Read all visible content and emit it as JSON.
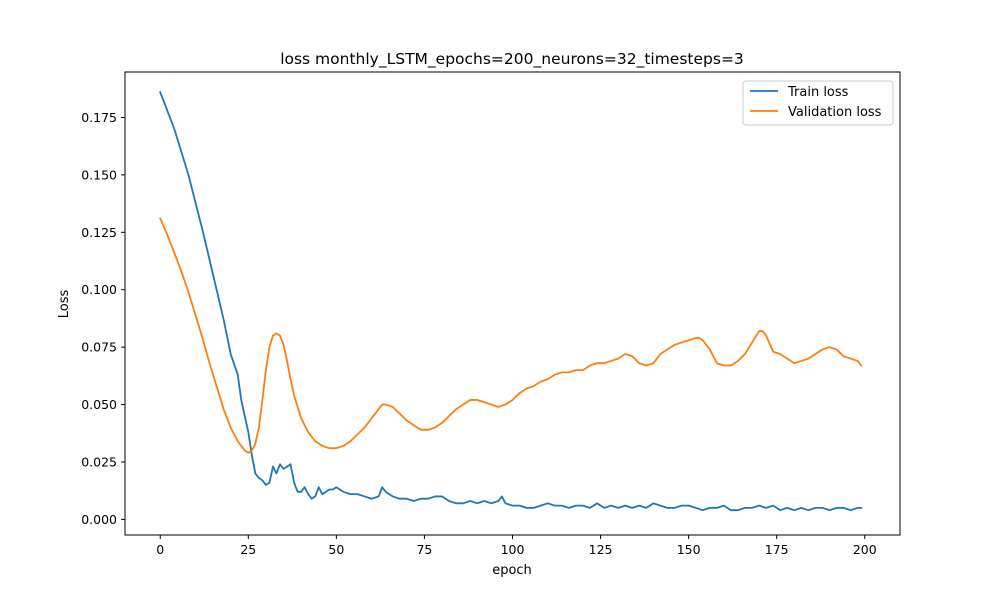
{
  "chart_data": {
    "type": "line",
    "title": "loss monthly_LSTM_epochs=200_neurons=32_timesteps=3",
    "xlabel": "epoch",
    "ylabel": "Loss",
    "xlim": [
      -10,
      210
    ],
    "ylim": [
      -0.0068,
      0.1948
    ],
    "xticks": [
      0,
      25,
      50,
      75,
      100,
      125,
      150,
      175,
      200
    ],
    "yticks": [
      0.0,
      0.025,
      0.05,
      0.075,
      0.1,
      0.125,
      0.15,
      0.175
    ],
    "ytick_labels": [
      "0.000",
      "0.025",
      "0.050",
      "0.075",
      "0.100",
      "0.125",
      "0.150",
      "0.175"
    ],
    "grid": false,
    "legend_position": "upper right",
    "series": [
      {
        "name": "Train loss",
        "color": "#1f77b4",
        "x": [
          0,
          2,
          4,
          6,
          8,
          10,
          12,
          14,
          16,
          18,
          20,
          22,
          23,
          24,
          25,
          26,
          27,
          28,
          29,
          30,
          31,
          32,
          33,
          34,
          35,
          36,
          37,
          38,
          39,
          40,
          41,
          42,
          43,
          44,
          45,
          46,
          47,
          48,
          49,
          50,
          52,
          54,
          56,
          58,
          60,
          62,
          63,
          64,
          66,
          68,
          70,
          72,
          74,
          76,
          78,
          80,
          82,
          84,
          86,
          88,
          90,
          92,
          94,
          96,
          97,
          98,
          100,
          102,
          104,
          106,
          108,
          110,
          112,
          114,
          116,
          118,
          120,
          122,
          124,
          126,
          128,
          130,
          132,
          134,
          136,
          138,
          140,
          142,
          144,
          146,
          148,
          150,
          152,
          154,
          156,
          158,
          160,
          162,
          164,
          166,
          168,
          170,
          172,
          174,
          176,
          178,
          180,
          182,
          184,
          186,
          188,
          190,
          192,
          194,
          196,
          198,
          199
        ],
        "values": [
          0.186,
          0.178,
          0.17,
          0.16,
          0.15,
          0.138,
          0.126,
          0.113,
          0.1,
          0.087,
          0.072,
          0.063,
          0.052,
          0.045,
          0.038,
          0.028,
          0.02,
          0.018,
          0.017,
          0.015,
          0.016,
          0.023,
          0.02,
          0.024,
          0.022,
          0.023,
          0.024,
          0.016,
          0.012,
          0.012,
          0.014,
          0.011,
          0.009,
          0.01,
          0.014,
          0.011,
          0.012,
          0.013,
          0.013,
          0.014,
          0.012,
          0.011,
          0.011,
          0.01,
          0.009,
          0.01,
          0.014,
          0.012,
          0.01,
          0.009,
          0.009,
          0.008,
          0.009,
          0.009,
          0.01,
          0.01,
          0.008,
          0.007,
          0.007,
          0.008,
          0.007,
          0.008,
          0.007,
          0.008,
          0.01,
          0.007,
          0.006,
          0.006,
          0.005,
          0.005,
          0.006,
          0.007,
          0.006,
          0.006,
          0.005,
          0.006,
          0.006,
          0.005,
          0.007,
          0.005,
          0.006,
          0.005,
          0.006,
          0.005,
          0.006,
          0.005,
          0.007,
          0.006,
          0.005,
          0.005,
          0.006,
          0.006,
          0.005,
          0.004,
          0.005,
          0.005,
          0.006,
          0.004,
          0.004,
          0.005,
          0.005,
          0.006,
          0.005,
          0.006,
          0.004,
          0.005,
          0.004,
          0.005,
          0.004,
          0.005,
          0.005,
          0.004,
          0.005,
          0.005,
          0.004,
          0.005,
          0.005
        ]
      },
      {
        "name": "Validation loss",
        "color": "#ff7f0e",
        "x": [
          0,
          2,
          4,
          6,
          8,
          10,
          12,
          14,
          16,
          18,
          20,
          22,
          24,
          25,
          26,
          27,
          28,
          29,
          30,
          31,
          32,
          33,
          34,
          35,
          36,
          37,
          38,
          40,
          42,
          44,
          46,
          48,
          50,
          52,
          54,
          56,
          58,
          60,
          62,
          63,
          64,
          66,
          68,
          70,
          72,
          74,
          76,
          78,
          80,
          82,
          84,
          86,
          88,
          90,
          92,
          94,
          96,
          98,
          100,
          102,
          104,
          106,
          108,
          110,
          112,
          114,
          116,
          118,
          120,
          122,
          124,
          126,
          128,
          130,
          132,
          134,
          136,
          138,
          140,
          142,
          144,
          146,
          148,
          150,
          152,
          153,
          154,
          156,
          158,
          160,
          162,
          164,
          166,
          168,
          170,
          171,
          172,
          174,
          176,
          178,
          180,
          182,
          184,
          186,
          188,
          190,
          192,
          194,
          196,
          198,
          199
        ],
        "values": [
          0.131,
          0.124,
          0.116,
          0.108,
          0.099,
          0.089,
          0.079,
          0.068,
          0.058,
          0.048,
          0.04,
          0.034,
          0.03,
          0.029,
          0.03,
          0.033,
          0.04,
          0.052,
          0.065,
          0.075,
          0.08,
          0.081,
          0.08,
          0.076,
          0.069,
          0.061,
          0.054,
          0.044,
          0.038,
          0.034,
          0.032,
          0.031,
          0.031,
          0.032,
          0.034,
          0.037,
          0.04,
          0.044,
          0.048,
          0.05,
          0.05,
          0.049,
          0.046,
          0.043,
          0.041,
          0.039,
          0.039,
          0.04,
          0.042,
          0.045,
          0.048,
          0.05,
          0.052,
          0.052,
          0.051,
          0.05,
          0.049,
          0.05,
          0.052,
          0.055,
          0.057,
          0.058,
          0.06,
          0.061,
          0.063,
          0.064,
          0.064,
          0.065,
          0.065,
          0.067,
          0.068,
          0.068,
          0.069,
          0.07,
          0.072,
          0.071,
          0.068,
          0.067,
          0.068,
          0.072,
          0.074,
          0.076,
          0.077,
          0.078,
          0.079,
          0.079,
          0.078,
          0.074,
          0.068,
          0.067,
          0.067,
          0.069,
          0.072,
          0.077,
          0.082,
          0.082,
          0.08,
          0.073,
          0.072,
          0.07,
          0.068,
          0.069,
          0.07,
          0.072,
          0.074,
          0.075,
          0.074,
          0.071,
          0.07,
          0.069,
          0.067
        ]
      }
    ]
  }
}
